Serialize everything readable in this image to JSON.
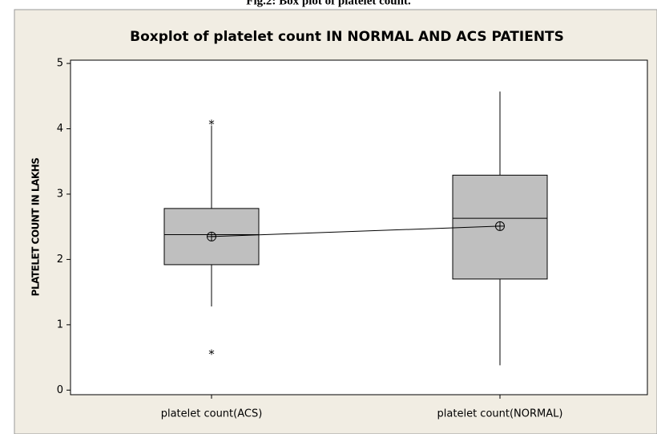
{
  "caption": "Fig.2: Box plot of platelet count.",
  "chart_data": {
    "type": "boxplot",
    "title": "Boxplot of platelet count IN NORMAL AND ACS PATIENTS",
    "y_label": "PLATELET COUNT IN LAKHS",
    "categories": [
      "platelet count(ACS)",
      "platelet count(NORMAL)"
    ],
    "boxes": [
      {
        "whisker_low": 1.28,
        "q1": 1.92,
        "median": 2.38,
        "q3": 2.78,
        "whisker_high": 4.05,
        "mean": 2.35,
        "outliers": [
          4.1,
          0.58
        ]
      },
      {
        "whisker_low": 0.38,
        "q1": 1.7,
        "median": 2.63,
        "q3": 3.29,
        "whisker_high": 4.57,
        "mean": 2.51,
        "outliers": []
      }
    ],
    "box_color": "#bfbfbf",
    "connect_means": true,
    "ylim": [
      -0.07,
      5.05
    ],
    "yticks": [
      0,
      1,
      2,
      3,
      4,
      5
    ]
  }
}
